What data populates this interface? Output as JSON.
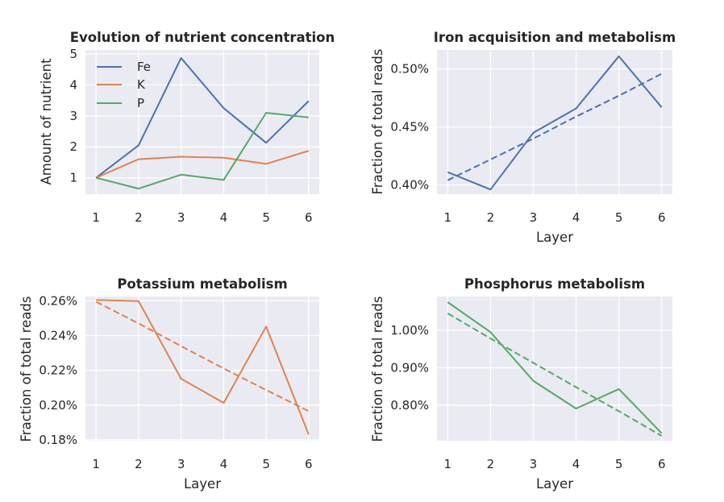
{
  "colors": {
    "background": "#ffffff",
    "axes_face": "#eaeaf2",
    "grid": "#ffffff",
    "text": "#262626",
    "Fe": "#4c72b0",
    "K": "#dd8452",
    "P": "#55a868"
  },
  "chart_data": [
    {
      "type": "line",
      "title": "Evolution of nutrient concentration",
      "xlabel": "",
      "ylabel": "Amount of nutrient",
      "x": [
        1,
        2,
        3,
        4,
        5,
        6
      ],
      "xticks": [
        "1",
        "2",
        "3",
        "4",
        "5",
        "6"
      ],
      "yticks": [
        "1",
        "2",
        "3",
        "4",
        "5"
      ],
      "ylim": [
        0.47,
        5.13
      ],
      "grid": true,
      "legend": {
        "position": "upper left",
        "entries": [
          "Fe",
          "K",
          "P"
        ]
      },
      "series": [
        {
          "name": "Fe",
          "color_key": "Fe",
          "values": [
            1.0,
            2.05,
            4.87,
            3.25,
            2.13,
            3.48
          ]
        },
        {
          "name": "K",
          "color_key": "K",
          "values": [
            1.0,
            1.6,
            1.68,
            1.65,
            1.45,
            1.87
          ]
        },
        {
          "name": "P",
          "color_key": "P",
          "values": [
            1.0,
            0.65,
            1.1,
            0.93,
            3.1,
            2.95
          ]
        }
      ]
    },
    {
      "type": "line",
      "title": "Iron acquisition and metabolism",
      "xlabel": "Layer",
      "ylabel": "Fraction of total reads",
      "x": [
        1,
        2,
        3,
        4,
        5,
        6
      ],
      "xticks": [
        "1",
        "2",
        "3",
        "4",
        "5",
        "6"
      ],
      "yticks": [
        "0.40%",
        "0.45%",
        "0.50%"
      ],
      "ytick_values": [
        0.4,
        0.45,
        0.5
      ],
      "ylim": [
        0.392,
        0.5165
      ],
      "grid": true,
      "series": [
        {
          "color_key": "Fe",
          "style": "solid",
          "values": [
            0.411,
            0.396,
            0.445,
            0.466,
            0.511,
            0.467
          ]
        },
        {
          "color_key": "Fe",
          "style": "dashed",
          "values": [
            0.404,
            0.422,
            0.44,
            0.459,
            0.477,
            0.496
          ]
        }
      ]
    },
    {
      "type": "line",
      "title": "Potassium metabolism",
      "xlabel": "Layer",
      "ylabel": "Fraction of total reads",
      "x": [
        1,
        2,
        3,
        4,
        5,
        6
      ],
      "xticks": [
        "1",
        "2",
        "3",
        "4",
        "5",
        "6"
      ],
      "yticks": [
        "0.18%",
        "0.20%",
        "0.22%",
        "0.24%",
        "0.26%"
      ],
      "ytick_values": [
        0.18,
        0.2,
        0.22,
        0.24,
        0.26
      ],
      "ylim": [
        0.1795,
        0.2625
      ],
      "grid": true,
      "series": [
        {
          "color_key": "K",
          "style": "solid",
          "values": [
            0.2605,
            0.2598,
            0.2152,
            0.2013,
            0.2452,
            0.1832
          ]
        },
        {
          "color_key": "K",
          "style": "dashed",
          "values": [
            0.2595,
            0.247,
            0.234,
            0.2211,
            0.2087,
            0.1966
          ]
        }
      ]
    },
    {
      "type": "line",
      "title": "Phosphorus metabolism",
      "xlabel": "Layer",
      "ylabel": "Fraction of total reads",
      "x": [
        1,
        2,
        3,
        4,
        5,
        6
      ],
      "xticks": [
        "1",
        "2",
        "3",
        "4",
        "5",
        "6"
      ],
      "yticks": [
        "0.80%",
        "0.90%",
        "1.00%"
      ],
      "ytick_values": [
        0.8,
        0.9,
        1.0
      ],
      "ylim": [
        0.705,
        1.09
      ],
      "grid": true,
      "series": [
        {
          "color_key": "P",
          "style": "solid",
          "values": [
            1.075,
            0.995,
            0.865,
            0.791,
            0.843,
            0.725
          ]
        },
        {
          "color_key": "P",
          "style": "dashed",
          "values": [
            1.045,
            0.978,
            0.913,
            0.848,
            0.784,
            0.718
          ]
        }
      ]
    }
  ],
  "axis_text": {
    "layer_label": "Layer"
  }
}
